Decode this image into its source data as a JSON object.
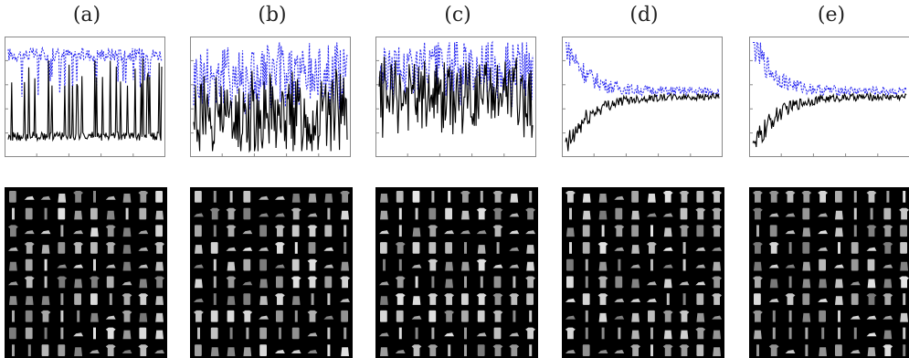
{
  "panels": [
    {
      "label": "(a)"
    },
    {
      "label": "(b)"
    },
    {
      "label": "(c)"
    },
    {
      "label": "(d)"
    },
    {
      "label": "(e)"
    }
  ],
  "colors": {
    "series_blue": "#2b2bf0",
    "series_black": "#000000",
    "grid_background": "#000000",
    "item_gray": "#b8b8b8"
  },
  "chart_data": [
    {
      "type": "line",
      "panel": "(a)",
      "series": [
        {
          "color": "#2b2bf0",
          "style": "dashed",
          "pattern": "high oscillating",
          "level": 0.85,
          "amplitude": 0.25
        },
        {
          "color": "#000000",
          "style": "solid",
          "pattern": "low with large spikes",
          "level": 0.15,
          "amplitude": 0.7
        }
      ]
    },
    {
      "type": "line",
      "panel": "(b)",
      "series": [
        {
          "color": "#2b2bf0",
          "style": "dashed",
          "pattern": "dense oscillation",
          "level": 0.7,
          "amplitude": 0.4
        },
        {
          "color": "#000000",
          "style": "solid",
          "pattern": "dense oscillation",
          "level": 0.35,
          "amplitude": 0.45
        }
      ]
    },
    {
      "type": "line",
      "panel": "(c)",
      "series": [
        {
          "color": "#2b2bf0",
          "style": "dashed",
          "pattern": "dense oscillation",
          "level": 0.75,
          "amplitude": 0.35
        },
        {
          "color": "#000000",
          "style": "solid",
          "pattern": "dense oscillation",
          "level": 0.5,
          "amplitude": 0.4
        }
      ]
    },
    {
      "type": "line",
      "panel": "(d)",
      "series": [
        {
          "color": "#2b2bf0",
          "style": "dashed",
          "pattern": "decaying to plateau",
          "level": 0.55,
          "amplitude": 0.08
        },
        {
          "color": "#000000",
          "style": "solid",
          "pattern": "rising to plateau",
          "level": 0.5,
          "amplitude": 0.06
        }
      ]
    },
    {
      "type": "line",
      "panel": "(e)",
      "series": [
        {
          "color": "#2b2bf0",
          "style": "dashed",
          "pattern": "decaying to plateau",
          "level": 0.55,
          "amplitude": 0.08
        },
        {
          "color": "#000000",
          "style": "solid",
          "pattern": "rising to plateau",
          "level": 0.5,
          "amplitude": 0.06
        }
      ]
    }
  ]
}
